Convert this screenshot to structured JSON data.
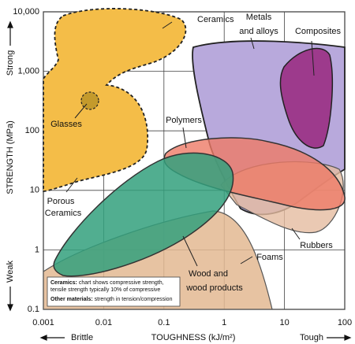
{
  "chart_data": {
    "type": "region",
    "xlabel": "TOUGHNESS (kJ/m²)",
    "ylabel": "STRENGTH (MPa)",
    "xlog": true,
    "ylog": true,
    "grid": true,
    "xlim": [
      0.001,
      100
    ],
    "ylim": [
      0.1,
      10000
    ],
    "xticks": [
      0.001,
      0.01,
      0.1,
      1,
      10,
      100
    ],
    "yticks": [
      0.1,
      1,
      10,
      100,
      {
        "value": 1000,
        "label": "1,000"
      },
      {
        "value": 10000,
        "label": "10,000"
      }
    ],
    "annotations": {
      "strong": "Strong",
      "weak": "Weak",
      "brittle": "Brittle",
      "tough": "Tough"
    },
    "regions": [
      {
        "lines": [
          "Ceramics"
        ]
      },
      {
        "lines": [
          "Metals",
          "and alloys"
        ]
      },
      {
        "lines": [
          "Composites"
        ]
      },
      {
        "lines": [
          "Glasses"
        ]
      },
      {
        "lines": [
          "Polymers"
        ]
      },
      {
        "lines": [
          "Porous",
          "Ceramics"
        ]
      },
      {
        "lines": [
          "Wood and",
          "wood products"
        ]
      },
      {
        "lines": [
          "Foams"
        ]
      },
      {
        "lines": [
          "Rubbers"
        ]
      }
    ],
    "note": [
      {
        "bold": "Ceramics:",
        "lines": [
          "chart shows compressive strength,",
          "tensile strength typically 10% of compressive"
        ]
      },
      {
        "bold": "Other materials:",
        "lines": [
          "strength in tension/compression"
        ]
      }
    ]
  }
}
